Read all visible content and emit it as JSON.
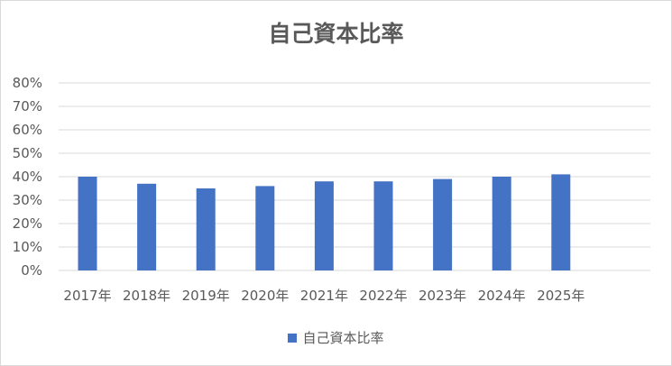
{
  "chart_data": {
    "type": "bar",
    "title": "自己資本比率",
    "xlabel": "",
    "ylabel": "",
    "categories": [
      "2017年",
      "2018年",
      "2019年",
      "2020年",
      "2021年",
      "2022年",
      "2023年",
      "2024年",
      "2025年"
    ],
    "series": [
      {
        "name": "自己資本比率",
        "values": [
          40,
          37,
          35,
          36,
          38,
          38,
          39,
          40,
          41
        ],
        "color": "#4472c4"
      }
    ],
    "ylim": [
      0,
      80
    ],
    "yticks": [
      "0%",
      "10%",
      "20%",
      "30%",
      "40%",
      "50%",
      "60%",
      "70%",
      "80%"
    ],
    "grid": true,
    "legend_position": "bottom"
  }
}
